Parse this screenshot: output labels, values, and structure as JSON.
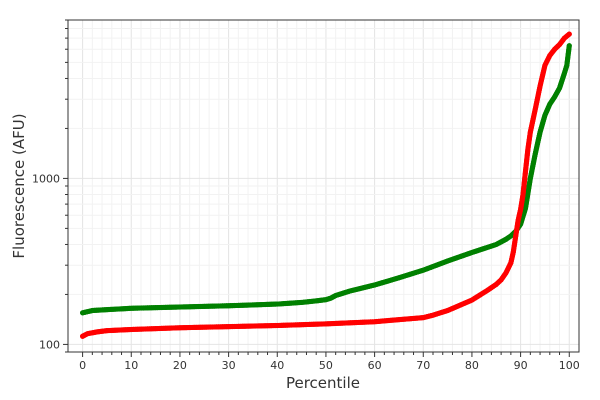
{
  "chart_data": {
    "type": "scatter",
    "title": "",
    "xlabel": "Percentile",
    "ylabel": "Fluorescence (AFU)",
    "x_scale": "linear",
    "y_scale": "log",
    "xlim": [
      -3,
      102
    ],
    "ylim": [
      90,
      9000
    ],
    "x_ticks": [
      0,
      10,
      20,
      30,
      40,
      50,
      60,
      70,
      80,
      90,
      100
    ],
    "y_ticks": [
      100,
      1000
    ],
    "grid": true,
    "legend": "none",
    "series": [
      {
        "color": "#008000",
        "marker": "circle",
        "x": [
          0,
          2,
          5,
          10,
          20,
          30,
          40,
          45,
          48,
          50,
          51,
          52,
          55,
          60,
          65,
          70,
          75,
          80,
          85,
          87,
          88,
          89,
          90,
          91,
          92,
          93,
          94,
          95,
          96,
          97,
          98,
          99,
          99.5,
          100
        ],
        "y": [
          155,
          160,
          162,
          165,
          168,
          171,
          175,
          179,
          183,
          186,
          190,
          197,
          210,
          228,
          252,
          280,
          318,
          358,
          400,
          430,
          450,
          480,
          530,
          660,
          1000,
          1400,
          1900,
          2400,
          2800,
          3100,
          3500,
          4300,
          4800,
          6300
        ]
      },
      {
        "color": "#ff0000",
        "marker": "circle",
        "x": [
          0,
          1,
          3,
          5,
          10,
          20,
          30,
          40,
          50,
          60,
          65,
          70,
          72,
          75,
          80,
          83,
          85,
          86,
          87,
          88,
          88.5,
          89,
          89.5,
          90,
          90.5,
          91,
          91.5,
          92,
          93,
          94,
          95,
          96,
          97,
          98,
          99,
          100
        ],
        "y": [
          112,
          116,
          119,
          121,
          123,
          126,
          128,
          130,
          133,
          137,
          141,
          145,
          150,
          160,
          185,
          210,
          230,
          245,
          270,
          310,
          360,
          450,
          560,
          650,
          800,
          1100,
          1500,
          1900,
          2600,
          3600,
          4800,
          5500,
          6000,
          6400,
          7000,
          7400
        ]
      }
    ]
  }
}
